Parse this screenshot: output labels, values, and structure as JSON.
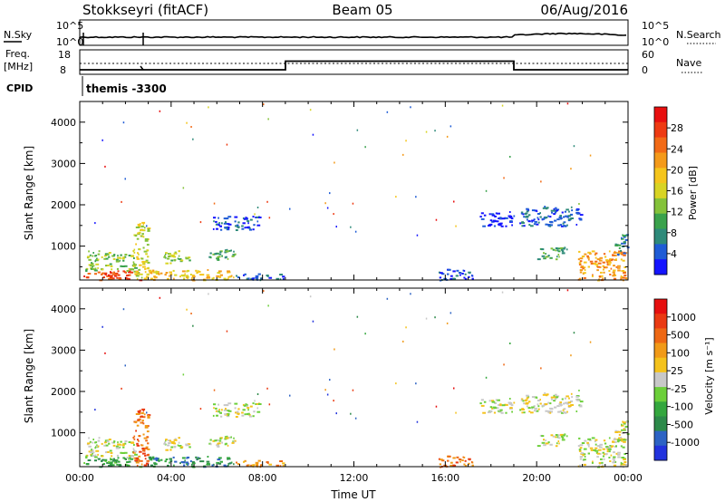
{
  "header": {
    "station": "Stokkseyri (fitACF)",
    "beam": "Beam 05",
    "date": "06/Aug/2016"
  },
  "top_panels": {
    "nsky_label": "N.Sky",
    "nsky_ticks": [
      "10^5",
      "10^0"
    ],
    "nsearch_label": "N.Search",
    "freq_label_line1": "Freq.",
    "freq_label_line2": "[MHz]",
    "freq_ticks": [
      "18",
      "8"
    ],
    "nave_label": "Nave",
    "nave_ticks": [
      "60",
      "0"
    ],
    "cpid_label": "CPID",
    "cpid_value": "themis -3300"
  },
  "chart_data": [
    {
      "type": "heatmap",
      "name": "power",
      "ylabel": "Slant Range [km]",
      "xlabel": "",
      "x_ticks": [
        "00:00",
        "04:00",
        "08:00",
        "12:00",
        "16:00",
        "20:00",
        "00:00"
      ],
      "y_ticks": [
        1000,
        2000,
        3000,
        4000
      ],
      "ylim": [
        180,
        4500
      ],
      "xlim_hours": [
        0,
        24
      ],
      "colorbar": {
        "label": "Power [dB]",
        "ticks": [
          "4",
          "8",
          "12",
          "16",
          "20",
          "24",
          "28"
        ],
        "colors": [
          "#1414ff",
          "#1f5cd6",
          "#2e8a7a",
          "#3aa24c",
          "#84c23a",
          "#d8d424",
          "#f5c51c",
          "#f49a1a",
          "#f26a16",
          "#ee3a12",
          "#e80f0f"
        ]
      },
      "echo_regions": [
        {
          "t0": 0.1,
          "t1": 2.6,
          "r0": 190,
          "r1": 420,
          "level": 9
        },
        {
          "t0": 0.2,
          "t1": 2.4,
          "r0": 420,
          "r1": 900,
          "level": 4
        },
        {
          "t0": 2.3,
          "t1": 3.0,
          "r0": 200,
          "r1": 1600,
          "level": 5
        },
        {
          "t0": 3.0,
          "t1": 6.8,
          "r0": 190,
          "r1": 450,
          "level": 6
        },
        {
          "t0": 3.6,
          "t1": 4.8,
          "r0": 600,
          "r1": 900,
          "level": 4
        },
        {
          "t0": 5.6,
          "t1": 6.8,
          "r0": 650,
          "r1": 950,
          "level": 3
        },
        {
          "t0": 5.8,
          "t1": 7.9,
          "r0": 1400,
          "r1": 1750,
          "level": 1
        },
        {
          "t0": 6.8,
          "t1": 9.0,
          "r0": 190,
          "r1": 350,
          "level": 1
        },
        {
          "t0": 15.7,
          "t1": 17.2,
          "r0": 190,
          "r1": 450,
          "level": 1
        },
        {
          "t0": 19.2,
          "t1": 21.9,
          "r0": 1500,
          "r1": 1980,
          "level": 1
        },
        {
          "t0": 17.5,
          "t1": 19.0,
          "r0": 1500,
          "r1": 1850,
          "level": 0
        },
        {
          "t0": 20.0,
          "t1": 21.3,
          "r0": 700,
          "r1": 1000,
          "level": 3
        },
        {
          "t0": 21.8,
          "t1": 23.9,
          "r0": 190,
          "r1": 900,
          "level": 7
        },
        {
          "t0": 23.4,
          "t1": 23.95,
          "r0": 800,
          "r1": 1300,
          "level": 2
        }
      ]
    },
    {
      "type": "heatmap",
      "name": "velocity",
      "ylabel": "Slant Range [km]",
      "xlabel": "Time UT",
      "x_ticks": [
        "00:00",
        "04:00",
        "08:00",
        "12:00",
        "16:00",
        "20:00",
        "00:00"
      ],
      "y_ticks": [
        1000,
        2000,
        3000,
        4000
      ],
      "ylim": [
        180,
        4500
      ],
      "xlim_hours": [
        0,
        24
      ],
      "colorbar": {
        "label": "Velocity [m s⁻¹]",
        "ticks": [
          "1000",
          "500",
          "100",
          "25",
          "-25",
          "-100",
          "-500",
          "-1000"
        ],
        "colors": [
          "#2233dd",
          "#2d63c4",
          "#2d8a4a",
          "#34a73e",
          "#6ccf3a",
          "#c8c8c8",
          "#f4c21c",
          "#f19a18",
          "#ee6814",
          "#ea3a12",
          "#e60f0f"
        ]
      },
      "echo_regions": [
        {
          "t0": 0.1,
          "t1": 2.6,
          "r0": 190,
          "r1": 420,
          "level": 3
        },
        {
          "t0": 0.2,
          "t1": 2.4,
          "r0": 420,
          "r1": 900,
          "level": 5
        },
        {
          "t0": 2.3,
          "t1": 3.0,
          "r0": 200,
          "r1": 1600,
          "level": 8
        },
        {
          "t0": 3.0,
          "t1": 6.8,
          "r0": 190,
          "r1": 450,
          "level": 2
        },
        {
          "t0": 3.6,
          "t1": 4.8,
          "r0": 600,
          "r1": 900,
          "level": 5
        },
        {
          "t0": 5.6,
          "t1": 6.8,
          "r0": 650,
          "r1": 950,
          "level": 5
        },
        {
          "t0": 5.8,
          "t1": 7.9,
          "r0": 1400,
          "r1": 1750,
          "level": 5
        },
        {
          "t0": 6.8,
          "t1": 9.0,
          "r0": 190,
          "r1": 350,
          "level": 7
        },
        {
          "t0": 15.7,
          "t1": 17.2,
          "r0": 190,
          "r1": 450,
          "level": 8
        },
        {
          "t0": 19.2,
          "t1": 21.9,
          "r0": 1500,
          "r1": 1980,
          "level": 5
        },
        {
          "t0": 17.5,
          "t1": 19.0,
          "r0": 1500,
          "r1": 1850,
          "level": 5
        },
        {
          "t0": 20.0,
          "t1": 21.3,
          "r0": 700,
          "r1": 1000,
          "level": 5
        },
        {
          "t0": 21.8,
          "t1": 23.9,
          "r0": 190,
          "r1": 900,
          "level": 5
        },
        {
          "t0": 23.4,
          "t1": 23.95,
          "r0": 800,
          "r1": 1300,
          "level": 5
        }
      ]
    }
  ]
}
